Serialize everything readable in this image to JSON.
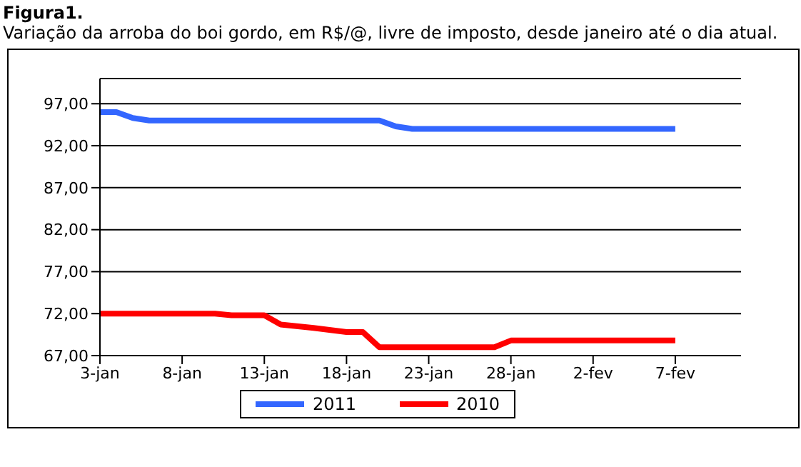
{
  "chart_data": {
    "type": "line",
    "title": "Figura1.",
    "subtitle": "Variação da arroba do boi gordo, em R$/@, livre de imposto,  desde janeiro até o dia atual.",
    "series": [
      {
        "name": "2011",
        "color": "#3366ff",
        "x": [
          "--01-03",
          "--01-04",
          "--01-05",
          "--01-06",
          "--01-20",
          "--01-21",
          "--01-22",
          "--02-07"
        ],
        "values": [
          96.0,
          96.0,
          95.3,
          95.0,
          95.0,
          94.3,
          94.0,
          94.0
        ]
      },
      {
        "name": "2010",
        "color": "#ff0000",
        "x": [
          "--01-03",
          "--01-10",
          "--01-11",
          "--01-13",
          "--01-14",
          "--01-16",
          "--01-18",
          "--01-19",
          "--01-20",
          "--01-27",
          "--01-28",
          "--02-07"
        ],
        "values": [
          72.0,
          72.0,
          71.8,
          71.8,
          70.7,
          70.3,
          69.8,
          69.8,
          68.0,
          68.0,
          68.8,
          68.8
        ]
      }
    ],
    "xlim": [
      "--01-03",
      "--02-11"
    ],
    "xticks": [
      {
        "value": "--01-03",
        "label": "3-jan"
      },
      {
        "value": "--01-08",
        "label": "8-jan"
      },
      {
        "value": "--01-13",
        "label": "13-jan"
      },
      {
        "value": "--01-18",
        "label": "18-jan"
      },
      {
        "value": "--01-23",
        "label": "23-jan"
      },
      {
        "value": "--01-28",
        "label": "28-jan"
      },
      {
        "value": "--02-02",
        "label": "2-fev"
      },
      {
        "value": "--02-07",
        "label": "7-fev"
      }
    ],
    "ylim": [
      67,
      100
    ],
    "yticks": [
      {
        "value": 67,
        "label": "67,00"
      },
      {
        "value": 72,
        "label": "72,00"
      },
      {
        "value": 77,
        "label": "77,00"
      },
      {
        "value": 82,
        "label": "82,00"
      },
      {
        "value": 87,
        "label": "87,00"
      },
      {
        "value": 92,
        "label": "92,00"
      },
      {
        "value": 97,
        "label": "97,00"
      }
    ],
    "grid": "y",
    "legend": "bottom",
    "marker": "none",
    "line_style": "solid"
  }
}
